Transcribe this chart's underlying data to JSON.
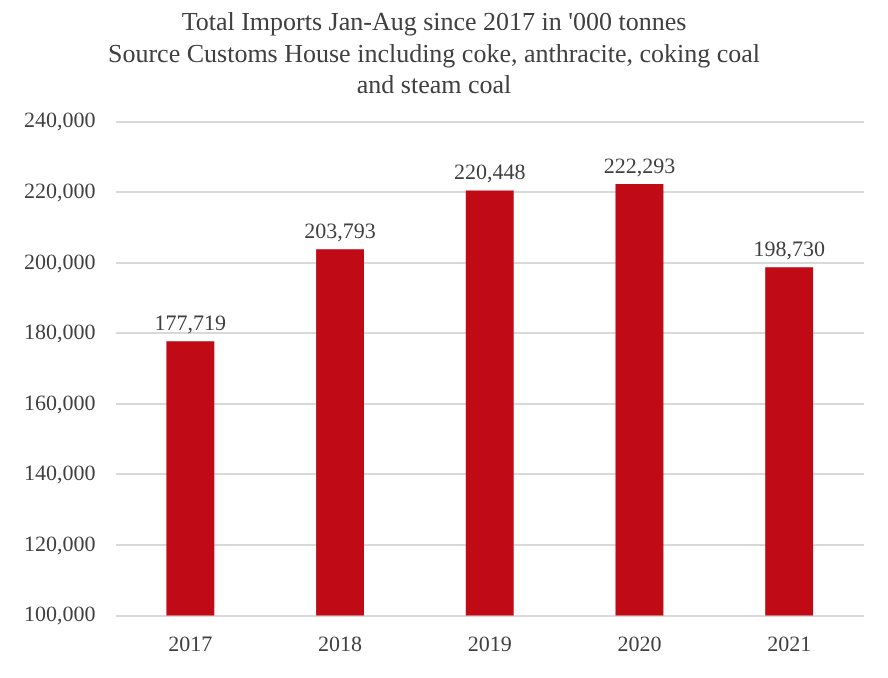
{
  "chart_data": {
    "type": "bar",
    "title": [
      "Total Imports Jan-Aug since 2017 in '000 tonnes",
      "Source Customs House including coke, anthracite, coking coal",
      "and steam coal"
    ],
    "categories": [
      "2017",
      "2018",
      "2019",
      "2020",
      "2021"
    ],
    "values": [
      177719,
      203793,
      220448,
      222293,
      198730
    ],
    "value_labels": [
      "177,719",
      "203,793",
      "220,448",
      "222,293",
      "198,730"
    ],
    "color": "#c00a16",
    "ylim": [
      100000,
      240000
    ],
    "yticks": [
      {
        "value": 100000,
        "label": "100,000"
      },
      {
        "value": 120000,
        "label": "120,000"
      },
      {
        "value": 140000,
        "label": "140,000"
      },
      {
        "value": 160000,
        "label": "160,000"
      },
      {
        "value": 180000,
        "label": "180,000"
      },
      {
        "value": 200000,
        "label": "200,000"
      },
      {
        "value": 220000,
        "label": "220,000"
      },
      {
        "value": 240000,
        "label": "240,000"
      }
    ],
    "grid": "y"
  }
}
